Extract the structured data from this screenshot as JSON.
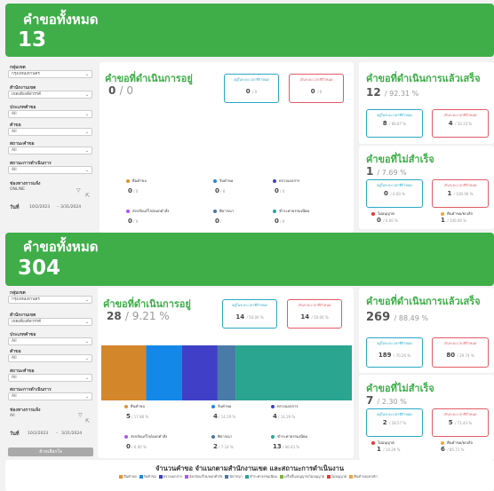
{
  "filters": {
    "agency_label": "กลุ่มเขต",
    "agency_value": "กรุงเทพมหานคร",
    "office_label": "สำนักงานเขต",
    "office_value": "เขตเตียงค์สวรรค์",
    "type_label": "ประเภทคำขอ",
    "type_value": "All",
    "request_label": "คำขอ",
    "request_value": "All",
    "status_label": "สถานะคำขอ",
    "status_value": "All",
    "progress_label": "สถานะการดำเนินการ",
    "progress_value": "All",
    "channel_label": "ช่องทางการแจ้ง",
    "channel_value_top": "ONLINE",
    "channel_value_bot": "All",
    "date_label": "วันที่",
    "date_from": "10/2/2023",
    "date_to": "3/31/2024",
    "submit_label": "ค้าหเลือกใจ"
  },
  "top": {
    "banner_title": "คำขอทั้งหมด",
    "banner_total": "13",
    "inprogress_title": "คำขอที่ดำเนินการอยู่",
    "inprogress_count": "0",
    "inprogress_pct": "/ 0",
    "box_within": "อยู่ในระยะเวลาที่กำหนด",
    "box_over": "เกินระยะเวลาที่กำหนด",
    "box_within_val": "0",
    "box_within_pct": "/ 0",
    "box_over_val": "0",
    "box_over_pct": "/ 0",
    "done_title": "คำขอที่ดำเนินการแล้วเสร็จ",
    "done_count": "12",
    "done_pct": "/ 92.31 %",
    "done_within_val": "8",
    "done_within_pct": "/ 66.67 %",
    "done_over_val": "4",
    "done_over_pct": "/ 33.33 %",
    "fail_title": "คำขอที่ไม่สำเร็จ",
    "fail_count": "1",
    "fail_pct": "/ 7.69 %",
    "fail_within_val": "0",
    "fail_within_pct": "/ 0.00 %",
    "fail_over_val": "1",
    "fail_over_pct": "/ 100.00 %",
    "fail_leg1": "ไม่อนุญาต",
    "fail_leg2": "คืนคำขอ/ยกเลิก",
    "fail_leg1_val": "0",
    "fail_leg1_pct": "/ 0.00 %",
    "fail_leg2_val": "1",
    "fail_leg2_pct": "/ 100.00 %",
    "legend": [
      {
        "label": "ยืนคำขอ",
        "val": "0",
        "pct": "/ 0"
      },
      {
        "label": "รับคำขอ",
        "val": "0",
        "pct": "/ 0"
      },
      {
        "label": "ตรวจเอกสาร",
        "val": "0",
        "pct": "/ 0"
      },
      {
        "label": "ส่งกลับแก้ไข/ออกคำสั่ง",
        "val": "0",
        "pct": "/ 0"
      },
      {
        "label": "พิจารณา",
        "val": "0",
        "pct": "/"
      },
      {
        "label": "ชำระค่าธรรมเนียม",
        "val": "0",
        "pct": "/ 0"
      }
    ]
  },
  "bot": {
    "banner_title": "คำขอทั้งหมด",
    "banner_total": "304",
    "inprogress_title": "คำขอที่ดำเนินการอยู่",
    "inprogress_count": "28",
    "inprogress_pct": "/ 9.21 %",
    "box_within_val": "14",
    "box_within_pct": "/ 50.00 %",
    "box_over_val": "14",
    "box_over_pct": "/ 50.00 %",
    "done_title": "คำขอที่ดำเนินการแล้วเสร็จ",
    "done_count": "269",
    "done_pct": "/ 88.49 %",
    "done_within_val": "189",
    "done_within_pct": "/ 70.26 %",
    "done_over_val": "80",
    "done_over_pct": "/ 29.74 %",
    "fail_title": "คำขอที่ไม่สำเร็จ",
    "fail_count": "7",
    "fail_pct": "/ 2.30 %",
    "fail_within_val": "2",
    "fail_within_pct": "/ 28.57 %",
    "fail_over_val": "5",
    "fail_over_pct": "/ 71.43 %",
    "fail_leg1_val": "1",
    "fail_leg1_pct": "/ 14.29 %",
    "fail_leg2_val": "6",
    "fail_leg2_pct": "/ 85.71 %",
    "legend": [
      {
        "label": "ยืนคำขอ",
        "val": "5",
        "pct": "/ 17.86 %"
      },
      {
        "label": "รับคำขอ",
        "val": "4",
        "pct": "/ 14.29 %"
      },
      {
        "label": "ตรวจเอกสาร",
        "val": "4",
        "pct": "/ 14.29 %"
      },
      {
        "label": "ส่งกลับแก้ไข/ออกคำสั่ง",
        "val": "0",
        "pct": "/ 0.00 %"
      },
      {
        "label": "พิจารณา",
        "val": "2",
        "pct": "/ 7.14 %"
      },
      {
        "label": "ชำระค่าธรรมเนียม",
        "val": "13",
        "pct": "/ 46.43 %"
      }
    ],
    "bottom_title": "จำนวนคำขอ  จำแนกตามสำนักงานเขต และสถานะการดำเนินงาน",
    "bottom_legend": [
      "ยืนคำขอ",
      "รับคำขอ",
      "ตรวจเอกสาร",
      "ส่งกลับแก้ไข/ออกคำสั่ง",
      "พิจารณา",
      "ชำระค่าธรรมเนียม",
      "เสร็จสิ้น/อนุญาต/ไม่อนุญาต",
      "ไม่อนุญาต",
      "คืนคำขอ/ยกเลิก"
    ]
  },
  "colors": {
    "green": "#3fae49",
    "stage": [
      "#e0922f",
      "#1e88e5",
      "#3f3fc8",
      "#a855f7",
      "#4b74a6",
      "#26a69a"
    ],
    "bar_segments": [
      "#d4862a",
      "#1488e8",
      "#3f3fc8",
      "#4a7aa8",
      "#2aa58f"
    ]
  },
  "chart_data": {
    "type": "bar",
    "categories": [
      "ยืนคำขอ",
      "รับคำขอ",
      "ตรวจเอกสาร",
      "พิจารณา",
      "ชำระค่าธรรมเนียม"
    ],
    "values": [
      5,
      4,
      4,
      2,
      13
    ],
    "orientation": "stacked-horizontal"
  }
}
